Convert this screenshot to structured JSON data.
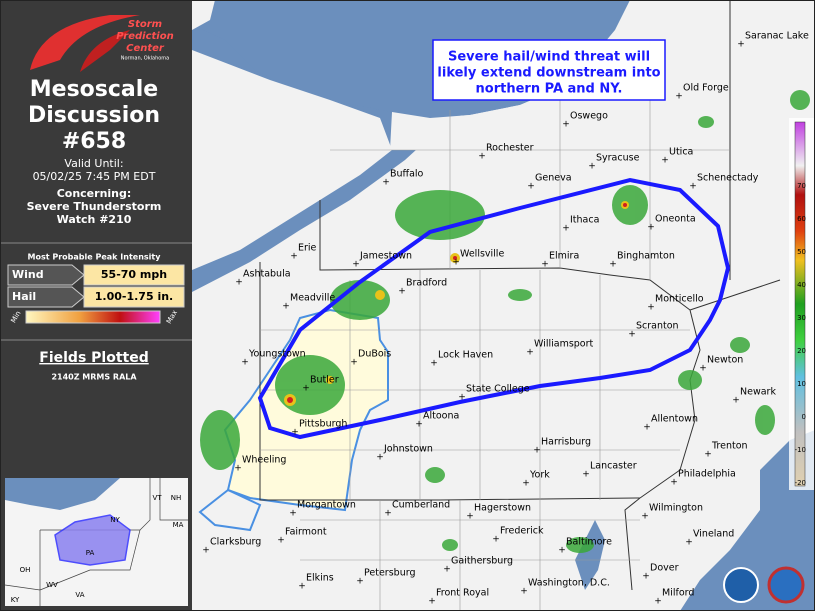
{
  "logo": {
    "line1": "Storm",
    "line2": "Prediction",
    "line3": "Center",
    "location": "Norman, Oklahoma"
  },
  "header": {
    "title_line1": "Mesoscale",
    "title_line2": "Discussion",
    "number": "#658",
    "valid_label": "Valid Until:",
    "valid_time": "05/02/25 7:45 PM EDT",
    "concerning_label": "Concerning:",
    "concerning_line1": "Severe Thunderstorm",
    "concerning_line2": "Watch #210"
  },
  "intensity": {
    "title": "Most Probable Peak Intensity",
    "wind_label": "Wind",
    "wind_value": "55-70 mph",
    "hail_label": "Hail",
    "hail_value": "1.00-1.75 in.",
    "min": "Min",
    "max": "Max"
  },
  "fields": {
    "title": "Fields Plotted",
    "value": "2140Z MRMS RALA"
  },
  "annotation": {
    "line1": "Severe hail/wind threat will",
    "line2": "likely extend downstream into",
    "line3": "northern PA and NY."
  },
  "inset": {
    "labels": [
      "VT",
      "NH",
      "NY",
      "MA",
      "PA",
      "OH",
      "WV",
      "VA",
      "KY"
    ]
  },
  "colorbar": {
    "labels": [
      "70",
      "60",
      "50",
      "40",
      "30",
      "20",
      "10",
      "0",
      "-10",
      "-20"
    ]
  },
  "cities": [
    "Saranac Lake",
    "Old Forge",
    "Oswego",
    "Rochester",
    "Syracuse",
    "Utica",
    "Schenectady",
    "Buffalo",
    "Geneva",
    "Oneonta",
    "Ithaca",
    "Erie",
    "Jamestown",
    "Wellsville",
    "Elmira",
    "Binghamton",
    "Ashtabula",
    "Bradford",
    "Monticello",
    "Meadville",
    "Williamsport",
    "Scranton",
    "Youngstown",
    "DuBois",
    "Lock Haven",
    "Newton",
    "Butler",
    "Newark",
    "State College",
    "Allentown",
    "Pittsburgh",
    "Altoona",
    "Harrisburg",
    "Johnstown",
    "Trenton",
    "Wheeling",
    "Lancaster",
    "Philadelphia",
    "York",
    "Morgantown",
    "Cumberland",
    "Hagerstown",
    "Wilmington",
    "Frederick",
    "Fairmont",
    "Vineland",
    "Clarksburg",
    "Baltimore",
    "Gaithersburg",
    "Elkins",
    "Petersburg",
    "Dover",
    "Front Royal",
    "Washington, D.C.",
    "Milford"
  ]
}
